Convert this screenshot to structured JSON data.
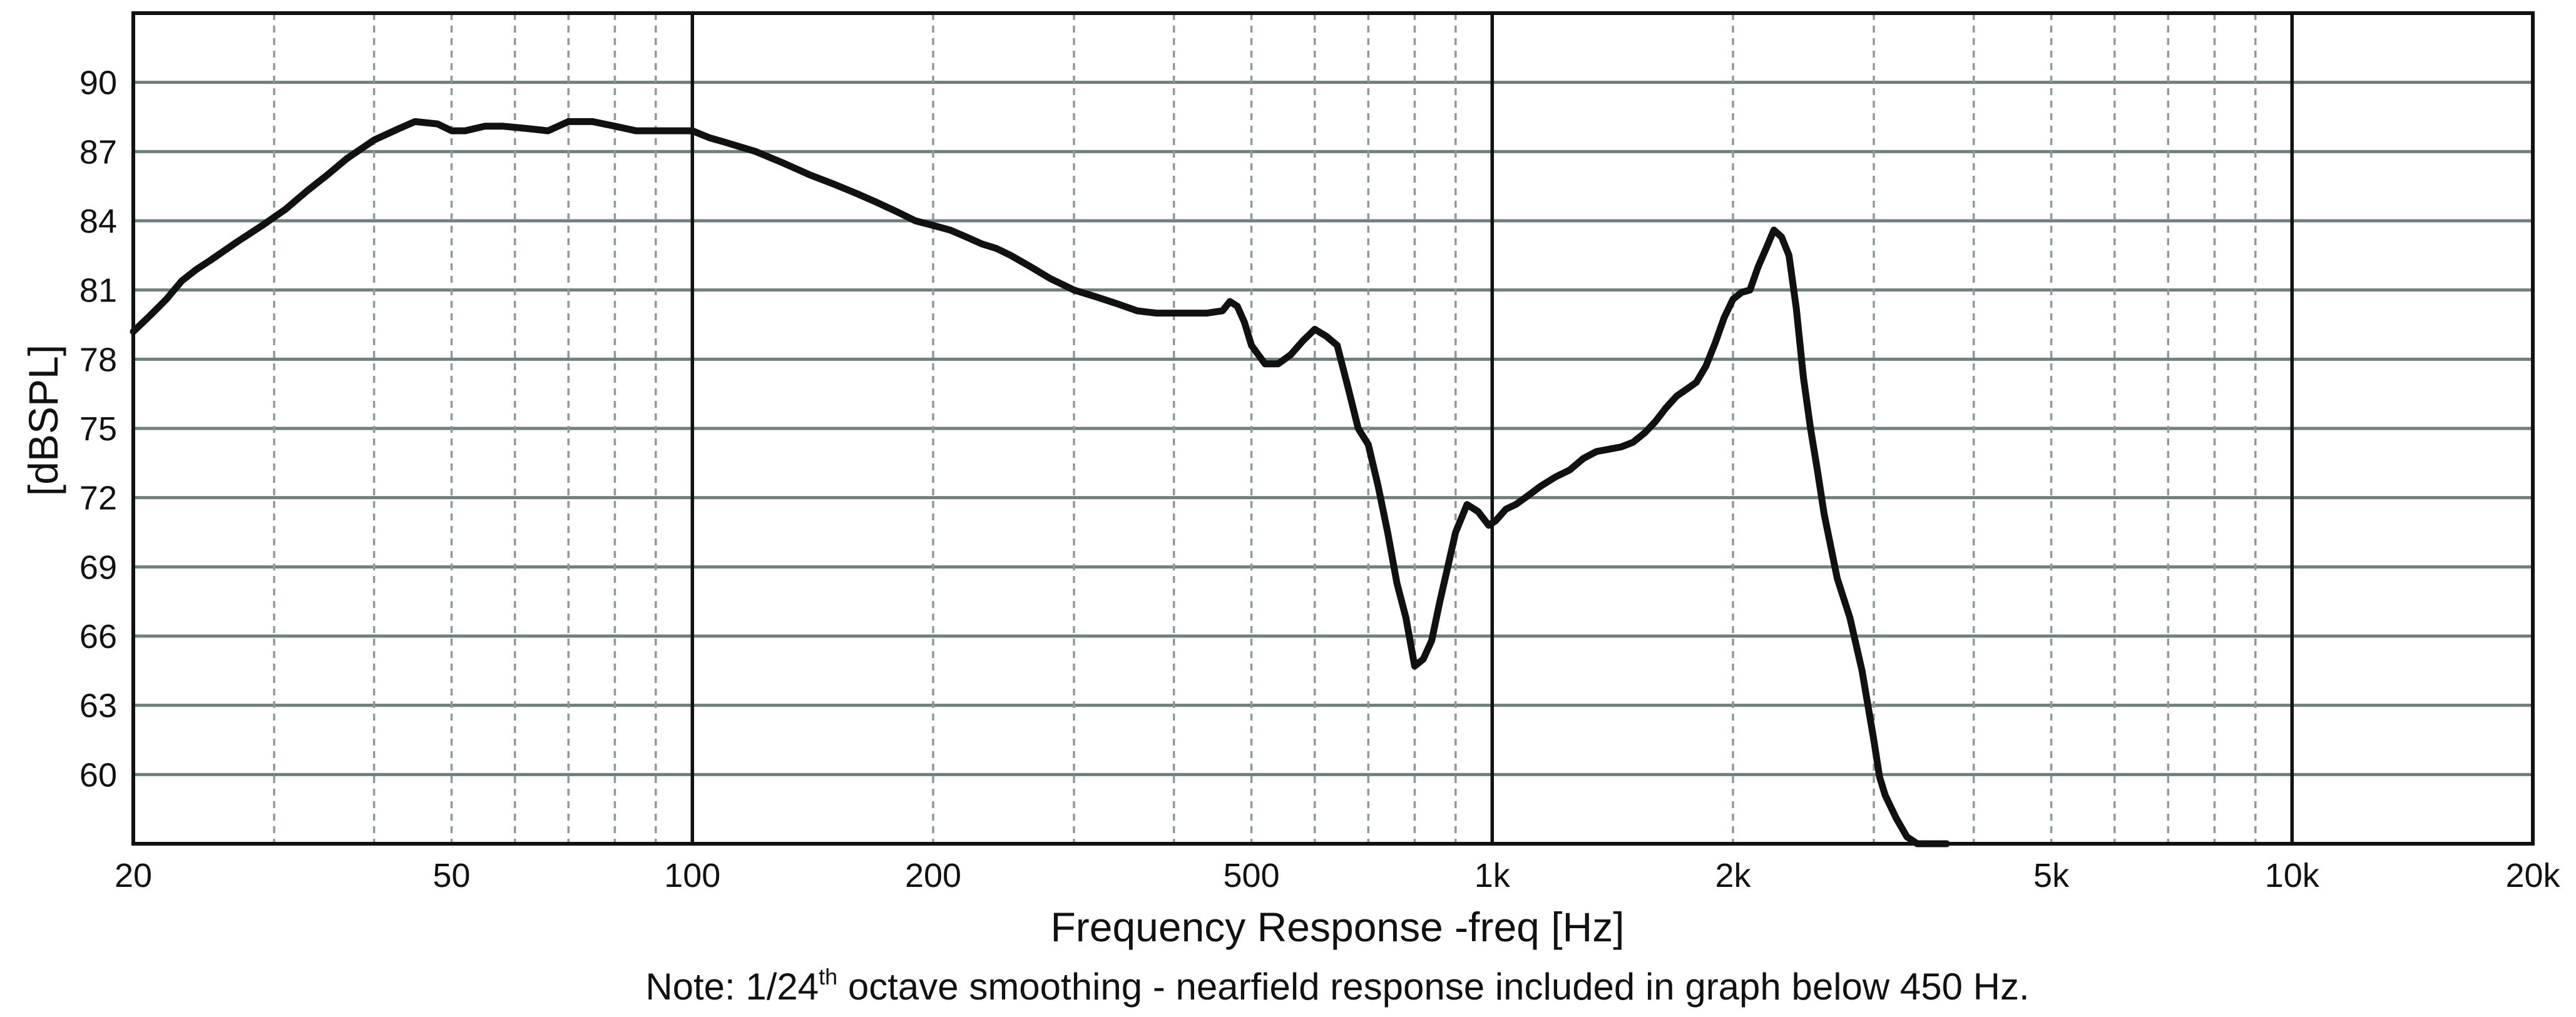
{
  "chart_data": {
    "type": "line",
    "xlabel": "Frequency Response -freq [Hz]",
    "ylabel": "[dBSPL]",
    "x_scale": "log",
    "xlim": [
      20,
      20000
    ],
    "ylim": [
      57,
      93
    ],
    "x_ticks": [
      {
        "value": 20,
        "label": "20"
      },
      {
        "value": 50,
        "label": "50"
      },
      {
        "value": 100,
        "label": "100"
      },
      {
        "value": 200,
        "label": "200"
      },
      {
        "value": 500,
        "label": "500"
      },
      {
        "value": 1000,
        "label": "1k"
      },
      {
        "value": 2000,
        "label": "2k"
      },
      {
        "value": 5000,
        "label": "5k"
      },
      {
        "value": 10000,
        "label": "10k"
      },
      {
        "value": 20000,
        "label": "20k"
      }
    ],
    "y_ticks": [
      60,
      63,
      66,
      69,
      72,
      75,
      78,
      81,
      84,
      87,
      90
    ],
    "grid": true,
    "note": {
      "prefix": "Note: 1/24",
      "superscript": "th",
      "suffix": " octave smoothing - nearfield response included in graph below 450 Hz."
    },
    "colors": {
      "curve": "#111111",
      "major_grid": "#6f7e7e",
      "minor_grid": "#8c9a9a",
      "decade_line": "#111111",
      "frame": "#111111"
    },
    "series": [
      {
        "x": [
          20,
          21,
          22,
          23,
          24,
          25,
          27,
          29,
          31,
          33,
          35,
          37,
          40,
          43,
          45,
          48,
          50,
          52,
          55,
          58,
          62,
          66,
          70,
          75,
          80,
          85,
          90,
          95,
          100,
          105,
          110,
          120,
          130,
          140,
          150,
          160,
          170,
          180,
          190,
          200,
          210,
          220,
          230,
          240,
          250,
          265,
          280,
          300,
          320,
          340,
          360,
          380,
          400,
          420,
          440,
          460,
          470,
          480,
          490,
          500,
          520,
          540,
          560,
          580,
          600,
          620,
          640,
          660,
          680,
          700,
          720,
          740,
          760,
          780,
          800,
          820,
          840,
          860,
          880,
          900,
          930,
          960,
          990,
          1010,
          1040,
          1070,
          1100,
          1150,
          1200,
          1250,
          1300,
          1350,
          1400,
          1450,
          1500,
          1550,
          1600,
          1650,
          1700,
          1750,
          1800,
          1850,
          1900,
          1950,
          2000,
          2050,
          2100,
          2150,
          2200,
          2250,
          2300,
          2350,
          2400,
          2450,
          2500,
          2550,
          2600,
          2700,
          2800,
          2900,
          3000,
          3050,
          3100,
          3200,
          3300,
          3400,
          3500,
          3600,
          3700
        ],
        "y": [
          79.2,
          79.9,
          80.6,
          81.4,
          81.9,
          82.3,
          83.1,
          83.8,
          84.5,
          85.3,
          86.0,
          86.7,
          87.5,
          88.0,
          88.3,
          88.2,
          87.9,
          87.9,
          88.1,
          88.1,
          88.0,
          87.9,
          88.3,
          88.3,
          88.1,
          87.9,
          87.9,
          87.9,
          87.9,
          87.6,
          87.4,
          87.0,
          86.5,
          86.0,
          85.6,
          85.2,
          84.8,
          84.4,
          84.0,
          83.8,
          83.6,
          83.3,
          83.0,
          82.8,
          82.5,
          82.0,
          81.5,
          81.0,
          80.7,
          80.4,
          80.1,
          80.0,
          80.0,
          80.0,
          80.0,
          80.1,
          80.5,
          80.3,
          79.6,
          78.6,
          77.8,
          77.8,
          78.2,
          78.8,
          79.3,
          79.0,
          78.6,
          76.8,
          75.0,
          74.3,
          72.5,
          70.5,
          68.3,
          66.8,
          64.7,
          65.0,
          65.8,
          67.5,
          69.0,
          70.5,
          71.7,
          71.4,
          70.8,
          71.0,
          71.5,
          71.7,
          72.0,
          72.5,
          72.9,
          73.2,
          73.7,
          74.0,
          74.1,
          74.2,
          74.4,
          74.8,
          75.3,
          75.9,
          76.4,
          76.7,
          77.0,
          77.7,
          78.7,
          79.8,
          80.6,
          80.9,
          81.0,
          82.0,
          82.8,
          83.6,
          83.3,
          82.5,
          80.2,
          77.2,
          75.0,
          73.2,
          71.3,
          68.5,
          66.8,
          64.5,
          61.5,
          59.9,
          59.1,
          58.1,
          57.3,
          57.0,
          57.0,
          57.0,
          57.0
        ]
      }
    ]
  }
}
